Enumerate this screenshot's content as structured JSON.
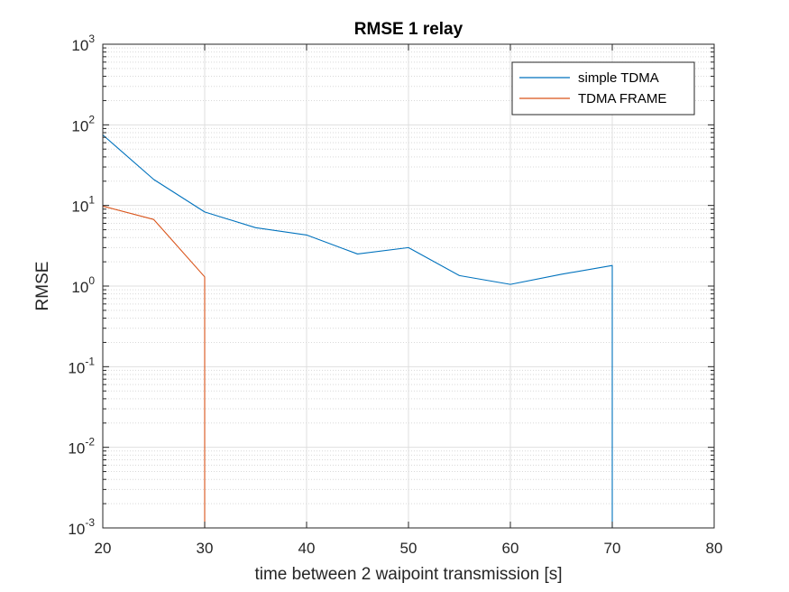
{
  "chart_data": {
    "type": "line",
    "title": "RMSE 1 relay",
    "xlabel": "time between 2 waipoint transmission [s]",
    "ylabel": "RMSE",
    "xlim": [
      20,
      80
    ],
    "ylim": [
      0.001,
      1000
    ],
    "yscale": "log",
    "grid": true,
    "minor_grid": true,
    "legend_position": "top-right",
    "x_ticks": [
      "20",
      "30",
      "40",
      "50",
      "60",
      "70",
      "80"
    ],
    "y_ticks": [
      {
        "base": "10",
        "exp": "-3"
      },
      {
        "base": "10",
        "exp": "-2"
      },
      {
        "base": "10",
        "exp": "-1"
      },
      {
        "base": "10",
        "exp": "0"
      },
      {
        "base": "10",
        "exp": "1"
      },
      {
        "base": "10",
        "exp": "2"
      },
      {
        "base": "10",
        "exp": "3"
      }
    ],
    "series": [
      {
        "name": "simple TDMA",
        "color": "#0072BD",
        "x": [
          20,
          25,
          30,
          35,
          40,
          45,
          50,
          55,
          60,
          65,
          70,
          70
        ],
        "y": [
          75,
          21,
          8.3,
          5.3,
          4.3,
          2.5,
          3.0,
          1.35,
          1.05,
          1.4,
          1.8,
          0.001
        ]
      },
      {
        "name": "TDMA FRAME",
        "color": "#D95319",
        "x": [
          20,
          25,
          30,
          30
        ],
        "y": [
          9.8,
          6.7,
          1.3,
          0.001
        ]
      }
    ]
  }
}
